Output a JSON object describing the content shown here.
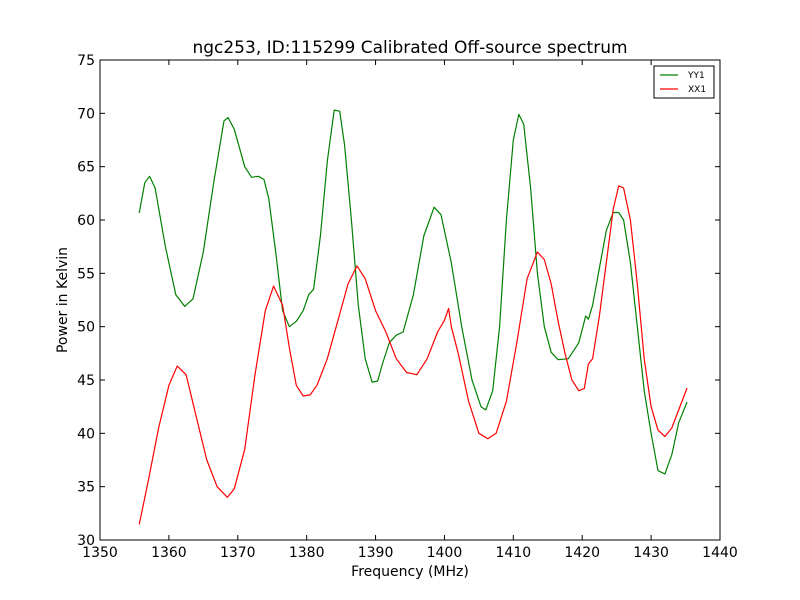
{
  "chart_data": {
    "type": "line",
    "title": "ngc253, ID:115299 Calibrated Off-source spectrum",
    "xlabel": "Frequency (MHz)",
    "ylabel": "Power in Kelvin",
    "xlim": [
      1350,
      1440
    ],
    "ylim": [
      30,
      75
    ],
    "xticks": [
      1350,
      1360,
      1370,
      1380,
      1390,
      1400,
      1410,
      1420,
      1430,
      1440
    ],
    "yticks": [
      30,
      35,
      40,
      45,
      50,
      55,
      60,
      65,
      70,
      75
    ],
    "grid": false,
    "legend_position": "top-right",
    "series": [
      {
        "name": "YY1",
        "color": "#008000",
        "x": [
          1355.7,
          1356.5,
          1357.2,
          1358.0,
          1359.5,
          1361.0,
          1362.3,
          1363.5,
          1365.0,
          1366.5,
          1368.0,
          1368.6,
          1369.5,
          1371.0,
          1372.0,
          1373.0,
          1373.8,
          1374.5,
          1375.5,
          1376.5,
          1377.5,
          1378.5,
          1379.5,
          1380.3,
          1381.0,
          1382.0,
          1383.0,
          1384.0,
          1384.8,
          1385.5,
          1386.5,
          1387.5,
          1388.5,
          1389.5,
          1390.3,
          1391.0,
          1392.0,
          1393.0,
          1394.0,
          1395.5,
          1397.0,
          1398.5,
          1399.5,
          1401.0,
          1402.5,
          1404.0,
          1405.3,
          1406.0,
          1407.0,
          1408.0,
          1409.0,
          1410.0,
          1410.8,
          1411.5,
          1412.5,
          1413.5,
          1414.5,
          1415.5,
          1416.5,
          1418.0,
          1419.5,
          1420.5,
          1420.9,
          1421.5,
          1422.5,
          1423.5,
          1424.5,
          1425.3,
          1426.0,
          1427.0,
          1428.0,
          1429.0,
          1430.0,
          1431.0,
          1432.0,
          1433.0,
          1434.0,
          1435.2
        ],
        "y": [
          60.7,
          63.5,
          64.1,
          63.0,
          57.5,
          53.0,
          51.9,
          52.6,
          57.0,
          63.5,
          69.3,
          69.6,
          68.5,
          65.0,
          64.0,
          64.1,
          63.8,
          62.0,
          57.0,
          51.5,
          50.0,
          50.5,
          51.5,
          53.0,
          53.5,
          58.5,
          65.5,
          70.3,
          70.2,
          67.0,
          60.0,
          52.0,
          47.0,
          44.8,
          44.9,
          46.5,
          48.5,
          49.2,
          49.5,
          53.0,
          58.5,
          61.2,
          60.5,
          56.0,
          50.0,
          45.0,
          42.5,
          42.2,
          44.0,
          50.0,
          60.0,
          67.5,
          69.9,
          69.0,
          63.0,
          55.0,
          50.0,
          47.6,
          46.9,
          47.0,
          48.5,
          51.0,
          50.7,
          52.0,
          55.5,
          59.0,
          60.7,
          60.7,
          60.0,
          56.0,
          50.0,
          44.0,
          40.0,
          36.5,
          36.2,
          38.0,
          41.0,
          42.9
        ]
      },
      {
        "name": "XX1",
        "color": "#ff0000",
        "x": [
          1355.7,
          1357.0,
          1358.5,
          1360.0,
          1361.2,
          1362.5,
          1364.0,
          1365.5,
          1367.0,
          1368.5,
          1369.5,
          1371.0,
          1372.5,
          1374.0,
          1375.2,
          1376.5,
          1377.5,
          1378.5,
          1379.5,
          1380.5,
          1381.5,
          1383.0,
          1384.5,
          1386.0,
          1387.3,
          1388.5,
          1390.0,
          1391.5,
          1393.0,
          1394.5,
          1396.0,
          1397.5,
          1399.0,
          1400.0,
          1400.6,
          1401.0,
          1402.0,
          1403.5,
          1405.0,
          1406.3,
          1407.5,
          1409.0,
          1410.5,
          1412.0,
          1413.5,
          1414.5,
          1415.5,
          1416.5,
          1417.5,
          1418.5,
          1419.5,
          1420.3,
          1420.9,
          1421.5,
          1422.5,
          1423.5,
          1424.5,
          1425.3,
          1426.0,
          1427.0,
          1428.0,
          1429.0,
          1430.0,
          1431.0,
          1432.0,
          1433.0,
          1434.0,
          1435.2
        ],
        "y": [
          31.5,
          35.5,
          40.5,
          44.5,
          46.3,
          45.5,
          41.5,
          37.5,
          35.0,
          34.0,
          34.8,
          38.5,
          45.5,
          51.5,
          53.8,
          52.0,
          48.0,
          44.5,
          43.5,
          43.6,
          44.5,
          47.0,
          50.5,
          54.0,
          55.7,
          54.5,
          51.5,
          49.5,
          47.0,
          45.7,
          45.5,
          47.0,
          49.5,
          50.6,
          51.7,
          50.0,
          47.5,
          43.0,
          40.0,
          39.5,
          40.0,
          43.0,
          48.5,
          54.5,
          57.0,
          56.3,
          54.0,
          50.5,
          47.5,
          45.0,
          44.0,
          44.2,
          46.5,
          47.0,
          51.0,
          56.0,
          61.0,
          63.2,
          63.0,
          60.0,
          54.0,
          47.0,
          42.5,
          40.3,
          39.7,
          40.5,
          42.2,
          44.2
        ]
      }
    ]
  }
}
